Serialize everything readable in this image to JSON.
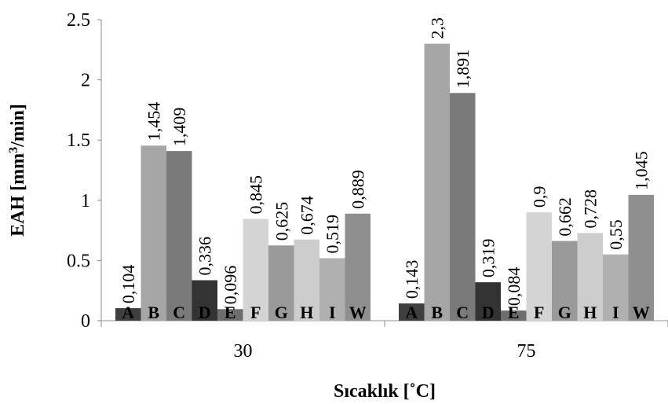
{
  "chart_data": {
    "type": "bar",
    "title": "",
    "xlabel": "Sıcaklık [˚C]",
    "ylabel_main": "EAH [mm",
    "ylabel_sup": "3",
    "ylabel_tail": "/min]",
    "ylim": [
      0,
      2.5
    ],
    "yticks": [
      "0",
      "0.5",
      "1",
      "1.5",
      "2",
      "2.5"
    ],
    "categories": [
      "30",
      "75"
    ],
    "series": [
      {
        "name": "A",
        "color": "#3f3f3f",
        "values": [
          0.104,
          0.143
        ],
        "labels": [
          "0,104",
          "0,143"
        ]
      },
      {
        "name": "B",
        "color": "#a6a6a6",
        "values": [
          1.454,
          2.3
        ],
        "labels": [
          "1,454",
          "2,3"
        ]
      },
      {
        "name": "C",
        "color": "#7a7a7a",
        "values": [
          1.409,
          1.891
        ],
        "labels": [
          "1,409",
          "1,891"
        ]
      },
      {
        "name": "D",
        "color": "#333333",
        "values": [
          0.336,
          0.319
        ],
        "labels": [
          "0,336",
          "0,319"
        ]
      },
      {
        "name": "E",
        "color": "#6e6e6e",
        "values": [
          0.096,
          0.084
        ],
        "labels": [
          "0,096",
          "0,084"
        ]
      },
      {
        "name": "F",
        "color": "#d4d4d4",
        "values": [
          0.845,
          0.9
        ],
        "labels": [
          "0,845",
          "0,9"
        ]
      },
      {
        "name": "G",
        "color": "#9a9a9a",
        "values": [
          0.625,
          0.662
        ],
        "labels": [
          "0,625",
          "0,662"
        ]
      },
      {
        "name": "H",
        "color": "#cdcdcd",
        "values": [
          0.674,
          0.728
        ],
        "labels": [
          "0,674",
          "0,728"
        ]
      },
      {
        "name": "I",
        "color": "#b0b0b0",
        "values": [
          0.519,
          0.55
        ],
        "labels": [
          "0,519",
          "0,55"
        ]
      },
      {
        "name": "W",
        "color": "#8f8f8f",
        "values": [
          0.889,
          1.045
        ],
        "labels": [
          "0,889",
          "1,045"
        ]
      }
    ],
    "grid": false,
    "legend": "none"
  }
}
